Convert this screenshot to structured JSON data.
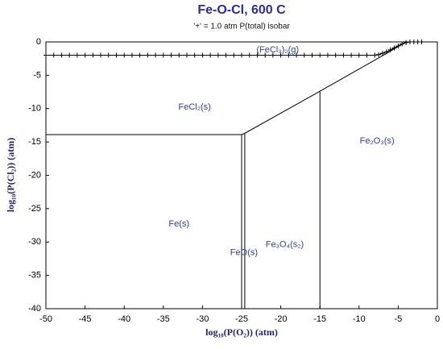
{
  "chart_data": {
    "type": "phase-diagram",
    "title": "Fe-O-Cl, 600 C",
    "subtitle": "'+' = 1.0 atm P(total) isobar",
    "xlabel": "log₁₀(P(O₂)) (atm)",
    "ylabel": "log₁₀(P(Cl₂)) (atm)",
    "xlim": [
      -50,
      0
    ],
    "ylim": [
      -40,
      0
    ],
    "xticks": [
      -50,
      -45,
      -40,
      -35,
      -30,
      -25,
      -20,
      -15,
      -10,
      -5,
      0
    ],
    "yticks": [
      0,
      -5,
      -10,
      -15,
      -20,
      -25,
      -30,
      -35,
      -40
    ],
    "series": [
      {
        "color": "#000000",
        "x": [
          -50,
          -25.0
        ],
        "values": [
          -13.9,
          -13.9
        ]
      },
      {
        "color": "#000000",
        "x": [
          -25.0,
          -25.0
        ],
        "values": [
          -13.9,
          -40
        ]
      },
      {
        "color": "#000000",
        "x": [
          -24.6,
          -24.6
        ],
        "values": [
          -13.7,
          -40
        ]
      },
      {
        "color": "#000000",
        "x": [
          -25.0,
          -24.6,
          -15,
          -6.9,
          -4
        ],
        "values": [
          -13.9,
          -13.7,
          -7.4,
          -2,
          0
        ]
      },
      {
        "color": "#000000",
        "x": [
          -15,
          -15
        ],
        "values": [
          -7.4,
          -40
        ]
      },
      {
        "color": "#000000",
        "marker": "+",
        "x": [
          -50,
          -49,
          -48,
          -47,
          -46,
          -45,
          -44,
          -43,
          -42,
          -41,
          -40,
          -39,
          -38,
          -37,
          -36,
          -35,
          -34,
          -33,
          -32,
          -31,
          -30,
          -29,
          -28,
          -27,
          -26,
          -25,
          -24,
          -23,
          -22,
          -21,
          -20,
          -19,
          -18,
          -17,
          -16,
          -15,
          -14,
          -13,
          -12,
          -11,
          -10,
          -9,
          -8,
          -7.5,
          -7,
          -6.5,
          -6,
          -5.5,
          -5,
          -4.5,
          -4,
          -3.5,
          -3,
          -2.5,
          -2
        ],
        "values": [
          -2,
          -2,
          -2,
          -2,
          -2,
          -2,
          -2,
          -2,
          -2,
          -2,
          -2,
          -2,
          -2,
          -2,
          -2,
          -2,
          -2,
          -2,
          -2,
          -2,
          -2,
          -2,
          -2,
          -2,
          -2,
          -2,
          -2,
          -2,
          -2,
          -2,
          -2,
          -2,
          -2,
          -2,
          -2,
          -2,
          -2,
          -2,
          -2,
          -2,
          -2,
          -2,
          -2,
          -1.9,
          -1.7,
          -1.5,
          -1.2,
          -0.9,
          -0.6,
          -0.3,
          -0.1,
          0,
          0,
          0,
          0
        ]
      }
    ],
    "annotations": [
      {
        "text": "(FeCl₃)₂(g)",
        "x": -20.4,
        "y": -1.2
      },
      {
        "text": "FeCl₂(s)",
        "x": -31,
        "y": -9.8
      },
      {
        "text": "Fe₂O₃(s)",
        "x": -7.7,
        "y": -14.9
      },
      {
        "text": "Fe(s)",
        "x": -33,
        "y": -27.3
      },
      {
        "text": "FeO(s)",
        "x": -24.7,
        "y": -31.6
      },
      {
        "text": "Fe₃O₄(s₂)",
        "x": -19.5,
        "y": -30.4
      }
    ]
  }
}
